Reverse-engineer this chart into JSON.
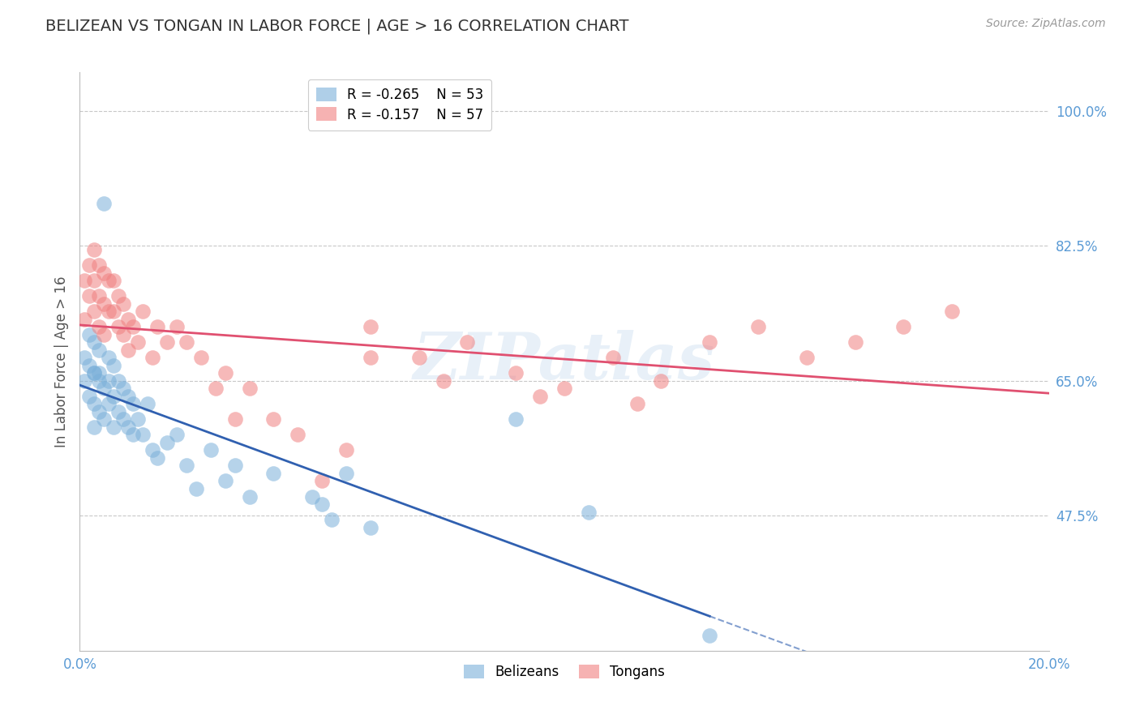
{
  "title": "BELIZEAN VS TONGAN IN LABOR FORCE | AGE > 16 CORRELATION CHART",
  "source_text": "Source: ZipAtlas.com",
  "ylabel": "In Labor Force | Age > 16",
  "xlim": [
    0.0,
    0.2
  ],
  "ylim": [
    0.3,
    1.05
  ],
  "yticks": [
    0.475,
    0.65,
    0.825,
    1.0
  ],
  "ytick_labels": [
    "47.5%",
    "65.0%",
    "82.5%",
    "100.0%"
  ],
  "background_color": "#ffffff",
  "grid_color": "#c8c8c8",
  "title_color": "#333333",
  "axis_tick_color": "#5b9bd5",
  "belizean_color": "#7ab0d9",
  "tongan_color": "#f08080",
  "belizean_line_color": "#3060b0",
  "tongan_line_color": "#e05070",
  "R_belizean": -0.265,
  "N_belizean": 53,
  "R_tongan": -0.157,
  "N_tongan": 57,
  "belizean_x": [
    0.001,
    0.001,
    0.002,
    0.002,
    0.002,
    0.003,
    0.003,
    0.003,
    0.003,
    0.003,
    0.004,
    0.004,
    0.004,
    0.004,
    0.005,
    0.005,
    0.005,
    0.006,
    0.006,
    0.006,
    0.007,
    0.007,
    0.007,
    0.008,
    0.008,
    0.009,
    0.009,
    0.01,
    0.01,
    0.011,
    0.011,
    0.012,
    0.013,
    0.014,
    0.015,
    0.016,
    0.018,
    0.02,
    0.022,
    0.024,
    0.027,
    0.03,
    0.035,
    0.04,
    0.048,
    0.052,
    0.055,
    0.06,
    0.09,
    0.105,
    0.13,
    0.05,
    0.032
  ],
  "belizean_y": [
    0.68,
    0.65,
    0.71,
    0.67,
    0.63,
    0.7,
    0.66,
    0.62,
    0.59,
    0.66,
    0.69,
    0.65,
    0.61,
    0.66,
    0.88,
    0.64,
    0.6,
    0.68,
    0.65,
    0.62,
    0.67,
    0.63,
    0.59,
    0.65,
    0.61,
    0.64,
    0.6,
    0.63,
    0.59,
    0.62,
    0.58,
    0.6,
    0.58,
    0.62,
    0.56,
    0.55,
    0.57,
    0.58,
    0.54,
    0.51,
    0.56,
    0.52,
    0.5,
    0.53,
    0.5,
    0.47,
    0.53,
    0.46,
    0.6,
    0.48,
    0.32,
    0.49,
    0.54
  ],
  "tongan_x": [
    0.001,
    0.001,
    0.002,
    0.002,
    0.003,
    0.003,
    0.003,
    0.004,
    0.004,
    0.004,
    0.005,
    0.005,
    0.005,
    0.006,
    0.006,
    0.007,
    0.007,
    0.008,
    0.008,
    0.009,
    0.009,
    0.01,
    0.01,
    0.011,
    0.012,
    0.013,
    0.015,
    0.016,
    0.018,
    0.02,
    0.022,
    0.025,
    0.03,
    0.035,
    0.04,
    0.06,
    0.07,
    0.08,
    0.09,
    0.1,
    0.11,
    0.12,
    0.13,
    0.14,
    0.15,
    0.16,
    0.17,
    0.18,
    0.06,
    0.075,
    0.095,
    0.115,
    0.045,
    0.055,
    0.05,
    0.028,
    0.032
  ],
  "tongan_y": [
    0.73,
    0.78,
    0.76,
    0.8,
    0.82,
    0.78,
    0.74,
    0.8,
    0.76,
    0.72,
    0.79,
    0.75,
    0.71,
    0.78,
    0.74,
    0.78,
    0.74,
    0.76,
    0.72,
    0.75,
    0.71,
    0.73,
    0.69,
    0.72,
    0.7,
    0.74,
    0.68,
    0.72,
    0.7,
    0.72,
    0.7,
    0.68,
    0.66,
    0.64,
    0.6,
    0.72,
    0.68,
    0.7,
    0.66,
    0.64,
    0.68,
    0.65,
    0.7,
    0.72,
    0.68,
    0.7,
    0.72,
    0.74,
    0.68,
    0.65,
    0.63,
    0.62,
    0.58,
    0.56,
    0.52,
    0.64,
    0.6
  ],
  "blue_line_solid_end": 0.13,
  "blue_line_dash_end": 0.2
}
